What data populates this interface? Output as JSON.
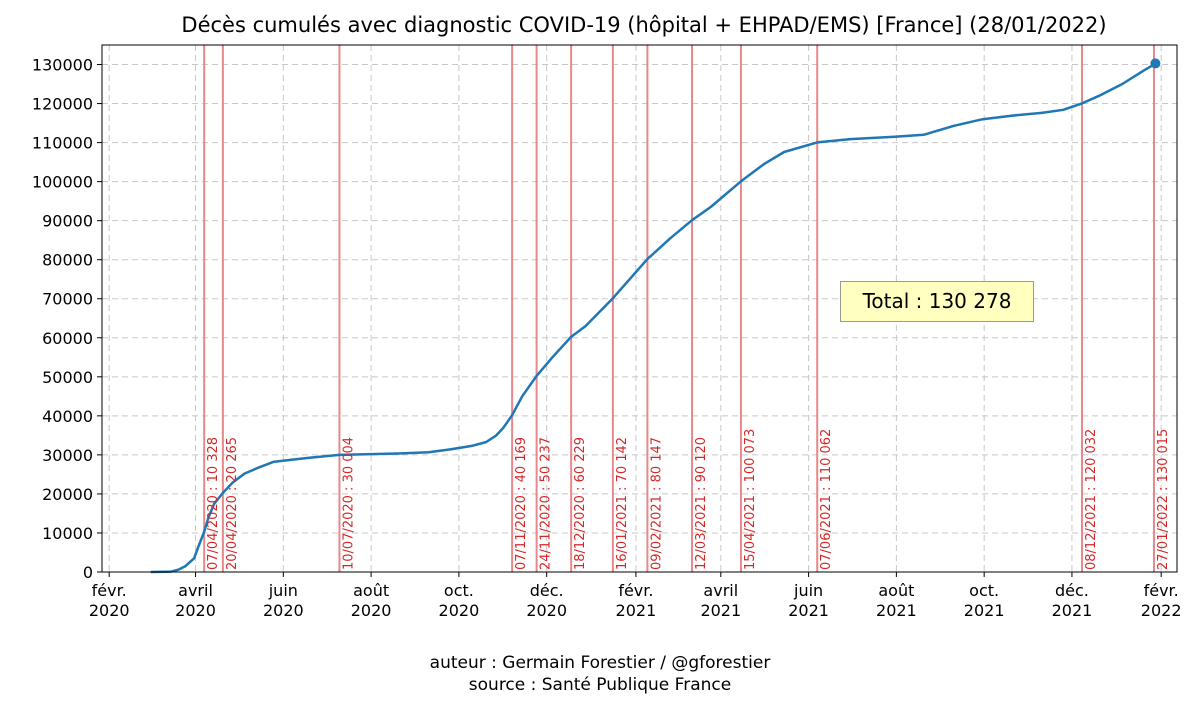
{
  "chart_data": {
    "type": "line",
    "title": "Décès cumulés avec diagnostic COVID-19 (hôpital + EHPAD/EMS) [France] (28/01/2022)",
    "xlabel": "",
    "ylabel": "",
    "ylim": [
      0,
      135000
    ],
    "xlim": [
      "2020-01-27",
      "2022-02-12"
    ],
    "grid": true,
    "yticks": [
      0,
      10000,
      20000,
      30000,
      40000,
      50000,
      60000,
      70000,
      80000,
      90000,
      100000,
      110000,
      120000,
      130000
    ],
    "xticks": [
      {
        "date": "2020-02-01",
        "label": [
          "févr.",
          "2020"
        ]
      },
      {
        "date": "2020-04-01",
        "label": [
          "avril",
          "2020"
        ]
      },
      {
        "date": "2020-06-01",
        "label": [
          "juin",
          "2020"
        ]
      },
      {
        "date": "2020-08-01",
        "label": [
          "août",
          "2020"
        ]
      },
      {
        "date": "2020-10-01",
        "label": [
          "oct.",
          "2020"
        ]
      },
      {
        "date": "2020-12-01",
        "label": [
          "déc.",
          "2020"
        ]
      },
      {
        "date": "2021-02-01",
        "label": [
          "févr.",
          "2021"
        ]
      },
      {
        "date": "2021-04-01",
        "label": [
          "avril",
          "2021"
        ]
      },
      {
        "date": "2021-06-01",
        "label": [
          "juin",
          "2021"
        ]
      },
      {
        "date": "2021-08-01",
        "label": [
          "août",
          "2021"
        ]
      },
      {
        "date": "2021-10-01",
        "label": [
          "oct.",
          "2021"
        ]
      },
      {
        "date": "2021-12-01",
        "label": [
          "déc.",
          "2021"
        ]
      },
      {
        "date": "2022-02-01",
        "label": [
          "févr.",
          "2022"
        ]
      }
    ],
    "series": [
      {
        "color": "#1f77b4",
        "points": [
          [
            "2020-03-01",
            0
          ],
          [
            "2020-03-15",
            100
          ],
          [
            "2020-03-20",
            600
          ],
          [
            "2020-03-25",
            1500
          ],
          [
            "2020-03-31",
            3500
          ],
          [
            "2020-04-03",
            6500
          ],
          [
            "2020-04-07",
            10328
          ],
          [
            "2020-04-10",
            14000
          ],
          [
            "2020-04-14",
            17500
          ],
          [
            "2020-04-20",
            20265
          ],
          [
            "2020-04-27",
            23000
          ],
          [
            "2020-05-05",
            25200
          ],
          [
            "2020-05-15",
            26800
          ],
          [
            "2020-05-25",
            28200
          ],
          [
            "2020-06-05",
            28700
          ],
          [
            "2020-06-20",
            29300
          ],
          [
            "2020-07-10",
            30004
          ],
          [
            "2020-08-01",
            30200
          ],
          [
            "2020-08-20",
            30350
          ],
          [
            "2020-09-10",
            30700
          ],
          [
            "2020-09-25",
            31400
          ],
          [
            "2020-10-10",
            32300
          ],
          [
            "2020-10-20",
            33300
          ],
          [
            "2020-10-27",
            35000
          ],
          [
            "2020-11-01",
            37000
          ],
          [
            "2020-11-07",
            40169
          ],
          [
            "2020-11-14",
            45000
          ],
          [
            "2020-11-24",
            50237
          ],
          [
            "2020-12-05",
            55000
          ],
          [
            "2020-12-18",
            60229
          ],
          [
            "2020-12-28",
            63000
          ],
          [
            "2021-01-16",
            70142
          ],
          [
            "2021-02-09",
            80147
          ],
          [
            "2021-02-25",
            85500
          ],
          [
            "2021-03-12",
            90120
          ],
          [
            "2021-03-25",
            93500
          ],
          [
            "2021-04-15",
            100073
          ],
          [
            "2021-05-01",
            104500
          ],
          [
            "2021-05-15",
            107600
          ],
          [
            "2021-06-07",
            110062
          ],
          [
            "2021-06-30",
            110900
          ],
          [
            "2021-07-31",
            111500
          ],
          [
            "2021-08-20",
            112000
          ],
          [
            "2021-09-10",
            114300
          ],
          [
            "2021-09-30",
            116000
          ],
          [
            "2021-10-20",
            116900
          ],
          [
            "2021-11-10",
            117600
          ],
          [
            "2021-11-25",
            118400
          ],
          [
            "2021-12-08",
            120032
          ],
          [
            "2021-12-20",
            122000
          ],
          [
            "2022-01-05",
            125000
          ],
          [
            "2022-01-20",
            128500
          ],
          [
            "2022-01-27",
            130015
          ],
          [
            "2022-01-28",
            130278
          ]
        ]
      }
    ],
    "last_point": {
      "date": "2022-01-28",
      "value": 130278
    },
    "markers": [
      {
        "date": "2020-04-07",
        "label": "07/04/2020 : 10 328"
      },
      {
        "date": "2020-04-20",
        "label": "20/04/2020 : 20 265"
      },
      {
        "date": "2020-07-10",
        "label": "10/07/2020 : 30 004"
      },
      {
        "date": "2020-11-07",
        "label": "07/11/2020 : 40 169"
      },
      {
        "date": "2020-11-24",
        "label": "24/11/2020 : 50 237"
      },
      {
        "date": "2020-12-18",
        "label": "18/12/2020 : 60 229"
      },
      {
        "date": "2021-01-16",
        "label": "16/01/2021 : 70 142"
      },
      {
        "date": "2021-02-09",
        "label": "09/02/2021 : 80 147"
      },
      {
        "date": "2021-03-12",
        "label": "12/03/2021 : 90 120"
      },
      {
        "date": "2021-04-15",
        "label": "15/04/2021 : 100 073"
      },
      {
        "date": "2021-06-07",
        "label": "07/06/2021 : 110 062"
      },
      {
        "date": "2021-12-08",
        "label": "08/12/2021 : 120 032"
      },
      {
        "date": "2022-01-27",
        "label": "27/01/2022 : 130 015"
      }
    ],
    "marker_color": "#e8888a",
    "annotation": "Total : 130 278"
  },
  "credits": {
    "author": "auteur : Germain Forestier / @gforestier",
    "source": "source : Santé Publique France"
  }
}
